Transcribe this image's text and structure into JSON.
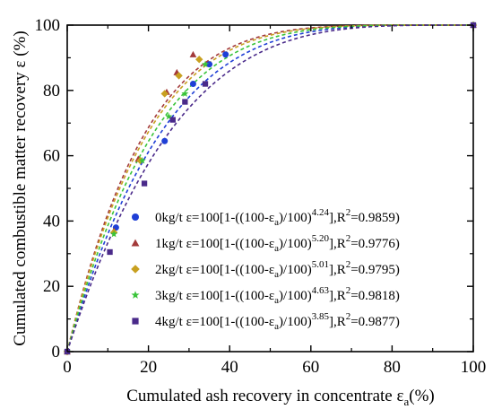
{
  "chart_data": {
    "type": "scatter",
    "title": "",
    "xlabel": "Cumulated ash recovery in concentrate ε",
    "xlabel_sub": "a",
    "xlabel_unit": "(%)",
    "ylabel": "Cumulated combustible matter recovery ε (%)",
    "xlim": [
      0,
      100
    ],
    "ylim": [
      0,
      100
    ],
    "xticks": [
      0,
      20,
      40,
      60,
      80,
      100
    ],
    "yticks": [
      0,
      20,
      40,
      60,
      80,
      100
    ],
    "grid": false,
    "legend_position": "bottom-right",
    "series": [
      {
        "name": "0kg/t",
        "color": "#1f3fd6",
        "marker": "circle",
        "equation": {
          "prefix": "ε=100[1-((100-ε",
          "sub": "a",
          "mid": ")/100)",
          "sup": "4.24",
          "suffix": "],R",
          "sup2": "2",
          "tail": "=0.9859)"
        },
        "exponent": 4.24,
        "points": [
          [
            0,
            0
          ],
          [
            12,
            38
          ],
          [
            24,
            64.5
          ],
          [
            31,
            82
          ],
          [
            35,
            88
          ],
          [
            39,
            91
          ],
          [
            100,
            100
          ]
        ]
      },
      {
        "name": "1kg/t",
        "color": "#a33a3a",
        "marker": "triangle",
        "equation": {
          "prefix": "ε=100[1-((100-ε",
          "sub": "a",
          "mid": ")/100)",
          "sup": "5.20",
          "suffix": "],R",
          "sup2": "2",
          "tail": "=0.9776)"
        },
        "exponent": 5.2,
        "points": [
          [
            0,
            0
          ],
          [
            11.5,
            37
          ],
          [
            17.5,
            59
          ],
          [
            24.5,
            79.5
          ],
          [
            27,
            85.5
          ],
          [
            31,
            91
          ],
          [
            100,
            100
          ]
        ]
      },
      {
        "name": "2kg/t",
        "color": "#c8a020",
        "marker": "diamond",
        "equation": {
          "prefix": "ε=100[1-((100-ε",
          "sub": "a",
          "mid": ")/100)",
          "sup": "5.01",
          "suffix": "],R",
          "sup2": "2",
          "tail": "=0.9795)"
        },
        "exponent": 5.01,
        "points": [
          [
            0,
            0
          ],
          [
            11.5,
            36.5
          ],
          [
            18,
            58.5
          ],
          [
            24,
            79
          ],
          [
            27.5,
            84.5
          ],
          [
            32.5,
            89.5
          ],
          [
            100,
            100
          ]
        ]
      },
      {
        "name": "3kg/t",
        "color": "#3ac43a",
        "marker": "star",
        "equation": {
          "prefix": "ε=100[1-((100-ε",
          "sub": "a",
          "mid": ")/100)",
          "sup": "4.63",
          "suffix": "],R",
          "sup2": "2",
          "tail": "=0.9818)"
        },
        "exponent": 4.63,
        "points": [
          [
            0,
            0
          ],
          [
            11.5,
            36
          ],
          [
            18.5,
            58.5
          ],
          [
            25,
            72
          ],
          [
            29,
            79
          ],
          [
            34,
            88
          ],
          [
            100,
            100
          ]
        ]
      },
      {
        "name": "4kg/t",
        "color": "#4a2a8a",
        "marker": "square",
        "equation": {
          "prefix": "ε=100[1-((100-ε",
          "sub": "a",
          "mid": ")/100)",
          "sup": "3.85",
          "suffix": "],R",
          "sup2": "2",
          "tail": "=0.9877)"
        },
        "exponent": 3.85,
        "points": [
          [
            0,
            0
          ],
          [
            10.5,
            30.5
          ],
          [
            19,
            51.5
          ],
          [
            26,
            71
          ],
          [
            29,
            76.5
          ],
          [
            34,
            82
          ],
          [
            100,
            100
          ]
        ]
      }
    ]
  }
}
